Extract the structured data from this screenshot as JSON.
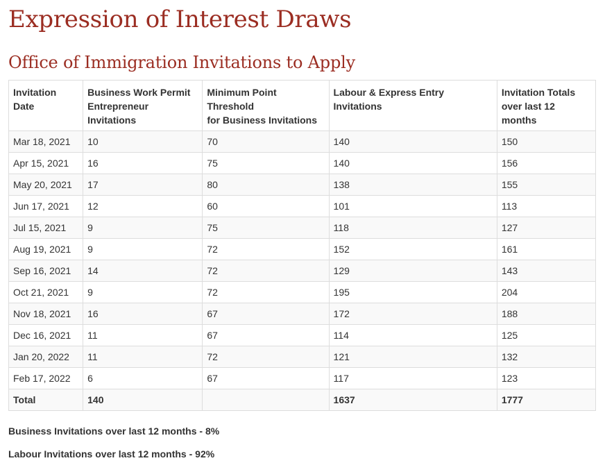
{
  "page": {
    "title": "Expression of Interest Draws",
    "subtitle": "Office of Immigration Invitations to Apply"
  },
  "table": {
    "headers": [
      [
        "Invitation",
        "Date"
      ],
      [
        "Business Work Permit",
        "Entrepreneur",
        "Invitations"
      ],
      [
        "Minimum Point",
        "Threshold",
        "for Business Invitations"
      ],
      [
        "Labour & Express Entry",
        "Invitations"
      ],
      [
        "Invitation Totals",
        "over last 12",
        "months"
      ]
    ],
    "rows": [
      [
        "Mar 18, 2021",
        "10",
        "70",
        "140",
        "150"
      ],
      [
        "Apr 15, 2021",
        "16",
        "75",
        "140",
        "156"
      ],
      [
        "May 20, 2021",
        "17",
        "80",
        "138",
        "155"
      ],
      [
        "Jun 17, 2021",
        "12",
        "60",
        "101",
        "113"
      ],
      [
        "Jul 15, 2021",
        "9",
        "75",
        "118",
        "127"
      ],
      [
        "Aug 19, 2021",
        "9",
        "72",
        "152",
        "161"
      ],
      [
        "Sep 16, 2021",
        "14",
        "72",
        "129",
        "143"
      ],
      [
        "Oct 21, 2021",
        "9",
        "72",
        "195",
        "204"
      ],
      [
        "Nov 18, 2021",
        "16",
        "67",
        "172",
        "188"
      ],
      [
        "Dec 16, 2021",
        "11",
        "67",
        "114",
        "125"
      ],
      [
        "Jan 20, 2022",
        "11",
        "72",
        "121",
        "132"
      ],
      [
        "Feb 17, 2022",
        "6",
        "67",
        "117",
        "123"
      ]
    ],
    "totals": [
      "Total",
      "140",
      "",
      "1637",
      "1777"
    ]
  },
  "notes": {
    "business": "Business Invitations over last 12 months - 8%",
    "labour": "Labour Invitations over last 12 months - 92%"
  },
  "colors": {
    "heading": "#9b2d22",
    "text": "#333333",
    "border": "#dddddd",
    "stripe": "#f9f9f9"
  }
}
